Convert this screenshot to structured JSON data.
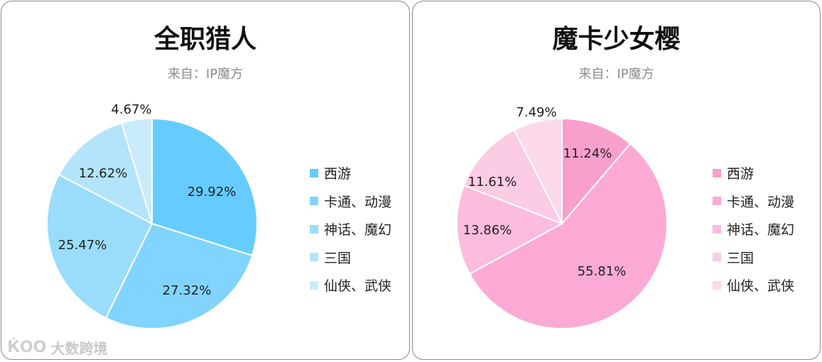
{
  "chart_data": [
    {
      "type": "pie",
      "title": "全职猎人",
      "subtitle": "来自：IP魔方",
      "categories": [
        "西游",
        "卡通、动漫",
        "神话、魔幻",
        "三国",
        "仙侠、武侠"
      ],
      "values": [
        29.92,
        27.32,
        25.47,
        12.62,
        4.67
      ],
      "labels": [
        "29.92%",
        "27.32%",
        "25.47%",
        "12.62%",
        "4.67%"
      ],
      "colors": [
        "#66ccff",
        "#80d4fd",
        "#99dcfc",
        "#b3e4fc",
        "#c9ebfb"
      ],
      "legend_position": "right"
    },
    {
      "type": "pie",
      "title": "魔卡少女樱",
      "subtitle": "来自：IP魔方",
      "categories": [
        "西游",
        "卡通、动漫",
        "神话、魔幻",
        "三国",
        "仙侠、武侠"
      ],
      "values": [
        11.24,
        55.81,
        13.86,
        11.61,
        7.49
      ],
      "labels": [
        "11.24%",
        "55.81%",
        "13.86%",
        "11.61%",
        "7.49%"
      ],
      "colors": [
        "#f99fcc",
        "#fbaad5",
        "#fbbcdd",
        "#fccbe4",
        "#fcdaeb"
      ],
      "legend_position": "right"
    }
  ],
  "watermark": {
    "logo_text": "ЌOO",
    "text": "大数跨境"
  }
}
